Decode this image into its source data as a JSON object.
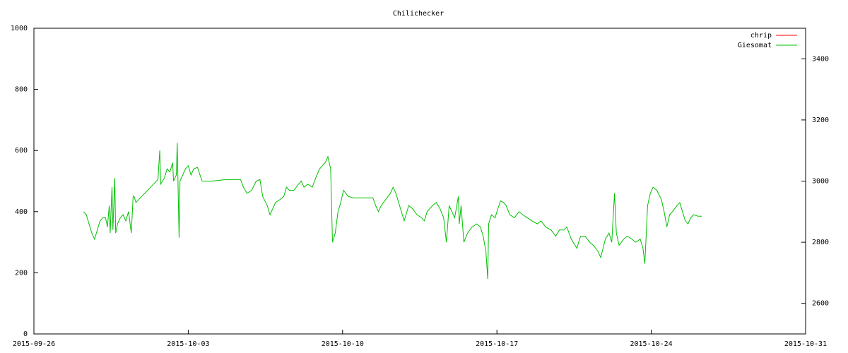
{
  "chart_data": {
    "type": "line",
    "title": "Chilichecker",
    "xlim": [
      "2015-09-26",
      "2015-10-31"
    ],
    "xticks": [
      "2015-09-26",
      "2015-10-03",
      "2015-10-10",
      "2015-10-17",
      "2015-10-24",
      "2015-10-31"
    ],
    "ylim": [
      0,
      1000
    ],
    "yticks": [
      0,
      200,
      400,
      600,
      800,
      1000
    ],
    "y2lim": [
      2500,
      3500
    ],
    "y2ticks": [
      2600,
      2800,
      3000,
      3200,
      3400
    ],
    "legend": "top-right",
    "series": [
      {
        "name": "chrip",
        "color": "#ff0000",
        "x": [],
        "values": []
      },
      {
        "name": "Giesomat",
        "color": "#00c000",
        "x": [
          "2015-09-28 06:00",
          "2015-09-28 09:00",
          "2015-09-28 12:00",
          "2015-09-28 15:00",
          "2015-09-28 18:00",
          "2015-09-28 21:00",
          "2015-09-29 00:00",
          "2015-09-29 03:00",
          "2015-09-29 06:00",
          "2015-09-29 08:00",
          "2015-09-29 10:00",
          "2015-09-29 11:00",
          "2015-09-29 13:00",
          "2015-09-29 14:00",
          "2015-09-29 16:00",
          "2015-09-29 17:00",
          "2015-09-29 19:00",
          "2015-09-29 22:00",
          "2015-09-30 01:00",
          "2015-09-30 04:00",
          "2015-09-30 07:00",
          "2015-09-30 10:00",
          "2015-09-30 12:00",
          "2015-09-30 13:00",
          "2015-09-30 15:00",
          "2015-10-01 15:00",
          "2015-10-01 17:00",
          "2015-10-01 18:00",
          "2015-10-01 22:00",
          "2015-10-02 01:00",
          "2015-10-02 04:00",
          "2015-10-02 07:00",
          "2015-10-02 08:00",
          "2015-10-02 11:00",
          "2015-10-02 12:00",
          "2015-10-02 14:00",
          "2015-10-02 15:00",
          "2015-10-02 18:00",
          "2015-10-02 21:00",
          "2015-10-03 00:00",
          "2015-10-03 03:00",
          "2015-10-03 06:00",
          "2015-10-03 10:00",
          "2015-10-03 15:00",
          "2015-10-04 02:00",
          "2015-10-04 17:00",
          "2015-10-05 09:00",
          "2015-10-05 12:00",
          "2015-10-05 16:00",
          "2015-10-05 21:00",
          "2015-10-06 02:00",
          "2015-10-06 06:00",
          "2015-10-06 09:00",
          "2015-10-06 14:00",
          "2015-10-06 17:00",
          "2015-10-06 20:00",
          "2015-10-06 23:00",
          "2015-10-07 04:00",
          "2015-10-07 08:00",
          "2015-10-07 11:00",
          "2015-10-07 14:00",
          "2015-10-07 19:00",
          "2015-10-08 00:00",
          "2015-10-08 03:00",
          "2015-10-08 06:00",
          "2015-10-08 10:00",
          "2015-10-08 15:00",
          "2015-10-08 20:00",
          "2015-10-08 23:00",
          "2015-10-09 02:00",
          "2015-10-09 05:00",
          "2015-10-09 08:00",
          "2015-10-09 11:00",
          "2015-10-09 13:00",
          "2015-10-09 16:00",
          "2015-10-09 19:00",
          "2015-10-09 22:00",
          "2015-10-10 01:00",
          "2015-10-10 06:00",
          "2015-10-10 12:00",
          "2015-10-11 03:00",
          "2015-10-11 09:00",
          "2015-10-11 12:00",
          "2015-10-11 15:00",
          "2015-10-11 18:00",
          "2015-10-11 23:00",
          "2015-10-12 04:00",
          "2015-10-12 07:00",
          "2015-10-12 10:00",
          "2015-10-12 14:00",
          "2015-10-12 19:00",
          "2015-10-13 00:00",
          "2015-10-13 04:00",
          "2015-10-13 09:00",
          "2015-10-13 14:00",
          "2015-10-13 17:00",
          "2015-10-13 20:00",
          "2015-10-14 02:00",
          "2015-10-14 06:00",
          "2015-10-14 10:00",
          "2015-10-14 14:00",
          "2015-10-14 17:00",
          "2015-10-14 20:00",
          "2015-10-14 23:00",
          "2015-10-15 02:00",
          "2015-10-15 06:00",
          "2015-10-15 07:00",
          "2015-10-15 09:00",
          "2015-10-15 12:00",
          "2015-10-15 16:00",
          "2015-10-15 21:00",
          "2015-10-16 02:00",
          "2015-10-16 06:00",
          "2015-10-16 09:00",
          "2015-10-16 12:00",
          "2015-10-16 14:00",
          "2015-10-16 15:00",
          "2015-10-16 18:00",
          "2015-10-16 22:00",
          "2015-10-17 01:00",
          "2015-10-17 04:00",
          "2015-10-17 07:00",
          "2015-10-17 10:00",
          "2015-10-17 14:00",
          "2015-10-17 19:00",
          "2015-10-18 00:00",
          "2015-10-18 04:00",
          "2015-10-18 09:00",
          "2015-10-18 14:00",
          "2015-10-18 20:00",
          "2015-10-19 00:00",
          "2015-10-19 05:00",
          "2015-10-19 11:00",
          "2015-10-19 16:00",
          "2015-10-19 20:00",
          "2015-10-20 01:00",
          "2015-10-20 04:00",
          "2015-10-20 09:00",
          "2015-10-20 15:00",
          "2015-10-20 19:00",
          "2015-10-21 00:00",
          "2015-10-21 05:00",
          "2015-10-21 09:00",
          "2015-10-21 14:00",
          "2015-10-21 17:00",
          "2015-10-21 22:00",
          "2015-10-22 02:00",
          "2015-10-22 05:00",
          "2015-10-22 08:00",
          "2015-10-22 10:00",
          "2015-10-22 13:00",
          "2015-10-22 18:00",
          "2015-10-22 22:00",
          "2015-10-23 03:00",
          "2015-10-23 07:00",
          "2015-10-23 12:00",
          "2015-10-23 15:00",
          "2015-10-23 17:00",
          "2015-10-23 20:00",
          "2015-10-23 23:00",
          "2015-10-24 02:00",
          "2015-10-24 06:00",
          "2015-10-24 11:00",
          "2015-10-24 14:00",
          "2015-10-24 17:00",
          "2015-10-24 20:00",
          "2015-10-24 23:00",
          "2015-10-25 04:00",
          "2015-10-25 07:00",
          "2015-10-25 10:00",
          "2015-10-25 13:00",
          "2015-10-25 16:00",
          "2015-10-25 19:00",
          "2015-10-25 22:00",
          "2015-10-26 03:00",
          "2015-10-26 07:00"
        ],
        "values": [
          400,
          390,
          360,
          330,
          310,
          340,
          370,
          380,
          380,
          350,
          420,
          330,
          480,
          340,
          510,
          330,
          360,
          380,
          390,
          370,
          400,
          330,
          450,
          450,
          430,
          505,
          600,
          490,
          510,
          540,
          530,
          560,
          500,
          520,
          625,
          315,
          500,
          520,
          540,
          550,
          520,
          540,
          545,
          500,
          500,
          505,
          505,
          480,
          460,
          470,
          500,
          505,
          450,
          420,
          390,
          410,
          430,
          440,
          450,
          480,
          470,
          470,
          490,
          500,
          480,
          490,
          480,
          520,
          540,
          550,
          560,
          580,
          540,
          300,
          330,
          400,
          430,
          470,
          450,
          445,
          445,
          445,
          420,
          400,
          420,
          440,
          460,
          480,
          460,
          420,
          370,
          420,
          410,
          390,
          380,
          370,
          400,
          420,
          430,
          410,
          380,
          300,
          420,
          400,
          380,
          450,
          360,
          420,
          300,
          330,
          350,
          360,
          350,
          320,
          270,
          180,
          360,
          390,
          380,
          410,
          435,
          430,
          420,
          390,
          380,
          400,
          390,
          380,
          370,
          360,
          370,
          350,
          340,
          320,
          340,
          340,
          350,
          310,
          280,
          320,
          320,
          300,
          290,
          270,
          250,
          310,
          330,
          300,
          460,
          330,
          290,
          310,
          320,
          310,
          300,
          310,
          280,
          230,
          420,
          460,
          480,
          470,
          440,
          400,
          350,
          390,
          400,
          420,
          430,
          400,
          370,
          360,
          380,
          390,
          385,
          385
        ]
      }
    ]
  }
}
